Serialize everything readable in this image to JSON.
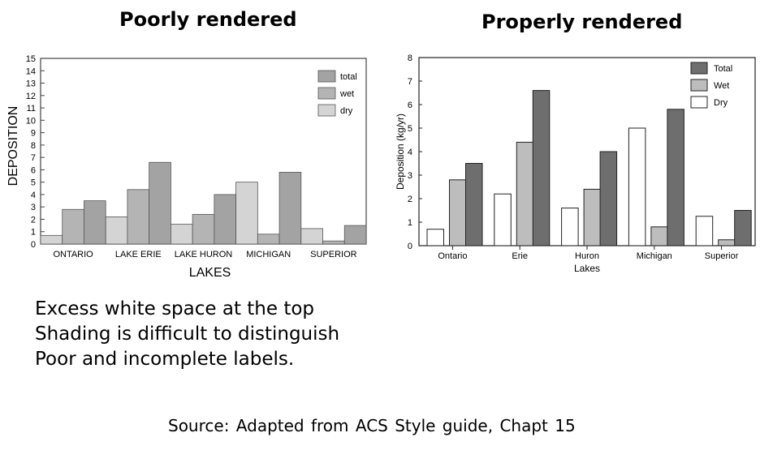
{
  "headings": {
    "left": "Poorly rendered",
    "right": "Properly rendered"
  },
  "notes": [
    "Excess white space at the top",
    "Shading is difficult to distinguish",
    "Poor and incomplete labels."
  ],
  "source": "Source: Adapted from ACS Style guide, Chapt 15",
  "chart_data": [
    {
      "type": "bar",
      "categories": [
        "ONTARIO",
        "LAKE ERIE",
        "LAKE HURON",
        "MICHIGAN",
        "SUPERIOR"
      ],
      "series": [
        {
          "name": "dry",
          "values": [
            0.7,
            2.2,
            1.6,
            5.0,
            1.25
          ],
          "color": "#d4d4d4"
        },
        {
          "name": "wet",
          "values": [
            2.8,
            4.4,
            2.4,
            0.8,
            0.25
          ],
          "color": "#b4b4b4"
        },
        {
          "name": "total",
          "values": [
            3.5,
            6.6,
            4.0,
            5.8,
            1.5
          ],
          "color": "#a3a3a3"
        }
      ],
      "legend_order": [
        "total",
        "wet",
        "dry"
      ],
      "xlabel": "LAKES",
      "ylabel": "DEPOSITION",
      "ylim": [
        0,
        15
      ],
      "yticks": [
        0,
        1,
        2,
        3,
        4,
        5,
        6,
        7,
        8,
        9,
        10,
        11,
        12,
        13,
        14,
        15
      ],
      "legend_position": "top-right",
      "grid": false
    },
    {
      "type": "bar",
      "categories": [
        "Ontario",
        "Erie",
        "Huron",
        "Michigan",
        "Superior"
      ],
      "series": [
        {
          "name": "Dry",
          "values": [
            0.7,
            2.2,
            1.6,
            5.0,
            1.25
          ],
          "color": "#ffffff"
        },
        {
          "name": "Wet",
          "values": [
            2.8,
            4.4,
            2.4,
            0.8,
            0.25
          ],
          "color": "#bdbdbd"
        },
        {
          "name": "Total",
          "values": [
            3.5,
            6.6,
            4.0,
            5.8,
            1.5
          ],
          "color": "#6e6e6e"
        }
      ],
      "legend_order": [
        "Total",
        "Wet",
        "Dry"
      ],
      "xlabel": "Lakes",
      "ylabel": "Deposition (kg/yr)",
      "ylim": [
        0,
        8
      ],
      "yticks": [
        0,
        1,
        2,
        3,
        4,
        5,
        6,
        7,
        8
      ],
      "legend_position": "top-right",
      "grid": false
    }
  ]
}
